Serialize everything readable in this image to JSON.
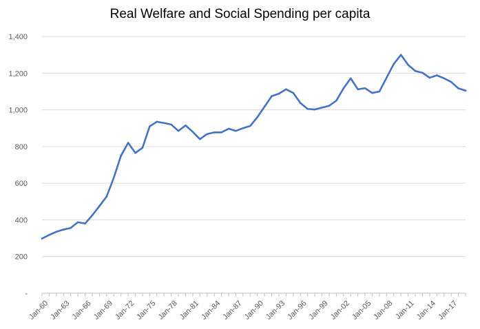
{
  "chart_data": {
    "type": "line",
    "title": "Real Welfare and Social Spending per capita",
    "xlabel": "",
    "ylabel": "",
    "ylim": [
      0,
      1400
    ],
    "yticks": [
      0,
      200,
      400,
      600,
      800,
      1000,
      1200,
      1400
    ],
    "ytick_labels": [
      "-",
      "200",
      "400",
      "600",
      "800",
      "1,000",
      "1,200",
      "1,400"
    ],
    "grid": true,
    "legend": "none",
    "line_color": "#4472C4",
    "x": [
      "Jan-60",
      "Jan-61",
      "Jan-62",
      "Jan-63",
      "Jan-64",
      "Jan-65",
      "Jan-66",
      "Jan-67",
      "Jan-68",
      "Jan-69",
      "Jan-70",
      "Jan-71",
      "Jan-72",
      "Jan-73",
      "Jan-74",
      "Jan-75",
      "Jan-76",
      "Jan-77",
      "Jan-78",
      "Jan-79",
      "Jan-80",
      "Jan-81",
      "Jan-82",
      "Jan-83",
      "Jan-84",
      "Jan-85",
      "Jan-86",
      "Jan-87",
      "Jan-88",
      "Jan-89",
      "Jan-90",
      "Jan-91",
      "Jan-92",
      "Jan-93",
      "Jan-94",
      "Jan-95",
      "Jan-96",
      "Jan-97",
      "Jan-98",
      "Jan-99",
      "Jan-00",
      "Jan-01",
      "Jan-02",
      "Jan-03",
      "Jan-04",
      "Jan-05",
      "Jan-06",
      "Jan-07",
      "Jan-08",
      "Jan-09",
      "Jan-10",
      "Jan-11",
      "Jan-12",
      "Jan-13",
      "Jan-14",
      "Jan-15",
      "Jan-16",
      "Jan-17",
      "Jan-18",
      "Jan-19"
    ],
    "xtick_labels": [
      "Jan-60",
      "Jan-63",
      "Jan-66",
      "Jan-69",
      "Jan-72",
      "Jan-75",
      "Jan-78",
      "Jan-81",
      "Jan-84",
      "Jan-87",
      "Jan-90",
      "Jan-93",
      "Jan-96",
      "Jan-99",
      "Jan-02",
      "Jan-05",
      "Jan-08",
      "Jan-11",
      "Jan-14",
      "Jan-17"
    ],
    "series": [
      {
        "values": [
          298,
          318,
          335,
          347,
          356,
          387,
          380,
          425,
          475,
          527,
          630,
          750,
          820,
          765,
          793,
          910,
          935,
          928,
          920,
          885,
          915,
          880,
          840,
          868,
          877,
          877,
          897,
          885,
          900,
          912,
          960,
          1017,
          1075,
          1088,
          1112,
          1092,
          1037,
          1005,
          1002,
          1012,
          1022,
          1050,
          1117,
          1172,
          1112,
          1118,
          1092,
          1100,
          1175,
          1250,
          1300,
          1245,
          1212,
          1202,
          1175,
          1188,
          1172,
          1152,
          1117,
          1105
        ]
      }
    ]
  }
}
